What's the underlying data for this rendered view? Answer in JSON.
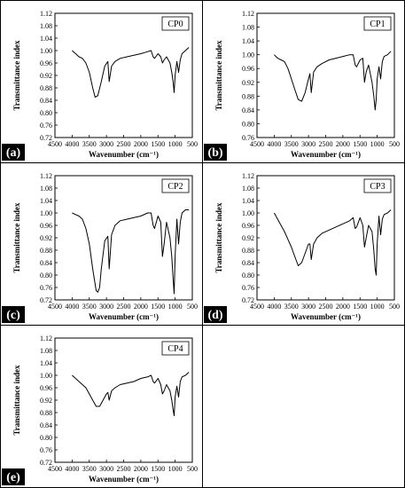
{
  "chart_data": [
    {
      "type": "line",
      "panel_label": "(a)",
      "title": "",
      "xlabel": "Wavenumber (cm⁻¹)",
      "ylabel": "Transmittance index",
      "xlim": [
        4500,
        500
      ],
      "ylim": [
        0.72,
        1.12
      ],
      "xticks": [
        4500,
        4000,
        3500,
        3000,
        2500,
        2000,
        1500,
        1000,
        500
      ],
      "yticks": [
        0.72,
        0.76,
        0.8,
        0.84,
        0.88,
        0.92,
        0.96,
        1.0,
        1.04,
        1.08,
        1.12
      ],
      "legend": "top-right",
      "grid": false,
      "series": [
        {
          "name": "CP0",
          "x": [
            4000,
            3900,
            3800,
            3700,
            3600,
            3500,
            3400,
            3330,
            3250,
            3150,
            3050,
            2960,
            2920,
            2850,
            2750,
            2600,
            2400,
            2200,
            2000,
            1850,
            1700,
            1640,
            1600,
            1500,
            1420,
            1370,
            1320,
            1250,
            1150,
            1100,
            1060,
            1030,
            1000,
            950,
            900,
            850,
            800,
            700,
            600
          ],
          "values": [
            1.0,
            0.99,
            0.98,
            0.975,
            0.96,
            0.93,
            0.88,
            0.85,
            0.855,
            0.9,
            0.95,
            0.965,
            0.9,
            0.95,
            0.965,
            0.975,
            0.98,
            0.985,
            0.99,
            0.995,
            1.0,
            0.98,
            0.975,
            0.99,
            0.98,
            0.96,
            0.97,
            0.98,
            0.96,
            0.93,
            0.9,
            0.865,
            0.92,
            0.965,
            0.93,
            0.97,
            0.99,
            1.0,
            1.01
          ]
        }
      ]
    },
    {
      "type": "line",
      "panel_label": "(b)",
      "title": "",
      "xlabel": "Wavenumber (cm⁻¹)",
      "ylabel": "Transmittance index",
      "xlim": [
        4500,
        500
      ],
      "ylim": [
        0.76,
        1.12
      ],
      "xticks": [
        4500,
        4000,
        3500,
        3000,
        2500,
        2000,
        1500,
        1000,
        500
      ],
      "yticks": [
        0.76,
        0.8,
        0.84,
        0.88,
        0.92,
        0.96,
        1.0,
        1.04,
        1.08,
        1.12
      ],
      "legend": "top-right",
      "grid": false,
      "series": [
        {
          "name": "CP1",
          "x": [
            4000,
            3900,
            3800,
            3700,
            3600,
            3500,
            3400,
            3300,
            3200,
            3100,
            3000,
            2960,
            2920,
            2850,
            2750,
            2600,
            2400,
            2200,
            2000,
            1800,
            1700,
            1640,
            1600,
            1500,
            1420,
            1370,
            1320,
            1250,
            1150,
            1100,
            1060,
            1030,
            1000,
            950,
            900,
            850,
            800,
            700,
            600
          ],
          "values": [
            1.0,
            0.99,
            0.985,
            0.98,
            0.96,
            0.93,
            0.9,
            0.87,
            0.865,
            0.89,
            0.93,
            0.945,
            0.89,
            0.95,
            0.965,
            0.975,
            0.985,
            0.99,
            0.995,
            1.0,
            1.0,
            0.97,
            0.965,
            0.985,
            0.99,
            0.92,
            0.95,
            0.97,
            0.92,
            0.88,
            0.84,
            0.87,
            0.93,
            0.965,
            0.93,
            0.98,
            0.995,
            1.0,
            1.01
          ]
        }
      ]
    },
    {
      "type": "line",
      "panel_label": "(c)",
      "title": "",
      "xlabel": "Wavenumber (cm⁻¹)",
      "ylabel": "Transmittance index",
      "xlim": [
        4500,
        500
      ],
      "ylim": [
        0.72,
        1.12
      ],
      "xticks": [
        4500,
        4000,
        3500,
        3000,
        2500,
        2000,
        1500,
        1000,
        500
      ],
      "yticks": [
        0.72,
        0.76,
        0.8,
        0.84,
        0.88,
        0.92,
        0.96,
        1.0,
        1.04,
        1.08,
        1.12
      ],
      "legend": "top-right",
      "grid": false,
      "series": [
        {
          "name": "CP2",
          "x": [
            4000,
            3900,
            3800,
            3700,
            3600,
            3500,
            3400,
            3300,
            3250,
            3200,
            3150,
            3050,
            2960,
            2920,
            2850,
            2750,
            2600,
            2400,
            2200,
            2000,
            1800,
            1700,
            1640,
            1600,
            1500,
            1420,
            1370,
            1320,
            1250,
            1150,
            1100,
            1060,
            1030,
            1000,
            950,
            900,
            850,
            800,
            700,
            600
          ],
          "values": [
            1.0,
            0.995,
            0.99,
            0.98,
            0.95,
            0.9,
            0.82,
            0.75,
            0.745,
            0.76,
            0.82,
            0.91,
            0.925,
            0.82,
            0.93,
            0.96,
            0.975,
            0.98,
            0.985,
            0.99,
            1.0,
            1.0,
            0.96,
            0.95,
            0.99,
            0.97,
            0.86,
            0.9,
            0.97,
            0.92,
            0.86,
            0.79,
            0.74,
            0.86,
            0.98,
            0.9,
            0.97,
            1.0,
            1.01,
            1.01
          ]
        }
      ]
    },
    {
      "type": "line",
      "panel_label": "(d)",
      "title": "",
      "xlabel": "Wavenumber (cm⁻¹)",
      "ylabel": "Transmittance index",
      "xlim": [
        4500,
        500
      ],
      "ylim": [
        0.72,
        1.12
      ],
      "xticks": [
        4500,
        4000,
        3500,
        3000,
        2500,
        2000,
        1500,
        1000,
        500
      ],
      "yticks": [
        0.72,
        0.76,
        0.8,
        0.84,
        0.88,
        0.92,
        0.96,
        1.0,
        1.04,
        1.08,
        1.12
      ],
      "legend": "top-right",
      "grid": false,
      "series": [
        {
          "name": "CP3",
          "x": [
            4000,
            3900,
            3800,
            3700,
            3600,
            3500,
            3400,
            3300,
            3200,
            3100,
            3000,
            2960,
            2920,
            2850,
            2750,
            2600,
            2400,
            2200,
            2000,
            1800,
            1700,
            1640,
            1600,
            1500,
            1420,
            1370,
            1320,
            1250,
            1150,
            1100,
            1060,
            1030,
            1000,
            950,
            900,
            850,
            800,
            700,
            600
          ],
          "values": [
            1.0,
            0.98,
            0.96,
            0.94,
            0.915,
            0.89,
            0.86,
            0.83,
            0.84,
            0.87,
            0.9,
            0.9,
            0.85,
            0.9,
            0.92,
            0.935,
            0.945,
            0.955,
            0.965,
            0.975,
            0.985,
            0.95,
            0.955,
            0.985,
            0.96,
            0.89,
            0.92,
            0.96,
            0.94,
            0.88,
            0.82,
            0.8,
            0.9,
            0.99,
            0.93,
            0.98,
            0.995,
            1.0,
            1.01
          ]
        }
      ]
    },
    {
      "type": "line",
      "panel_label": "(e)",
      "title": "",
      "xlabel": "Wavenumber (cm⁻¹)",
      "ylabel": "Transmittance index",
      "xlim": [
        4500,
        500
      ],
      "ylim": [
        0.72,
        1.12
      ],
      "xticks": [
        4500,
        4000,
        3500,
        3000,
        2500,
        2000,
        1500,
        1000,
        500
      ],
      "yticks": [
        0.72,
        0.76,
        0.8,
        0.84,
        0.88,
        0.92,
        0.96,
        1.0,
        1.04,
        1.08,
        1.12
      ],
      "legend": "top-right",
      "grid": false,
      "series": [
        {
          "name": "CP4",
          "x": [
            4000,
            3900,
            3800,
            3700,
            3600,
            3500,
            3400,
            3300,
            3200,
            3100,
            3000,
            2960,
            2920,
            2850,
            2750,
            2600,
            2400,
            2200,
            2000,
            1800,
            1700,
            1640,
            1600,
            1500,
            1420,
            1370,
            1320,
            1250,
            1150,
            1100,
            1060,
            1030,
            1000,
            950,
            900,
            850,
            800,
            700,
            600
          ],
          "values": [
            1.0,
            0.99,
            0.98,
            0.97,
            0.96,
            0.94,
            0.92,
            0.9,
            0.9,
            0.92,
            0.94,
            0.945,
            0.92,
            0.95,
            0.96,
            0.97,
            0.975,
            0.98,
            0.99,
            0.995,
            1.0,
            0.98,
            0.975,
            0.99,
            0.97,
            0.94,
            0.95,
            0.97,
            0.95,
            0.92,
            0.89,
            0.87,
            0.93,
            0.965,
            0.93,
            0.98,
            0.995,
            1.0,
            1.01
          ]
        }
      ]
    }
  ]
}
